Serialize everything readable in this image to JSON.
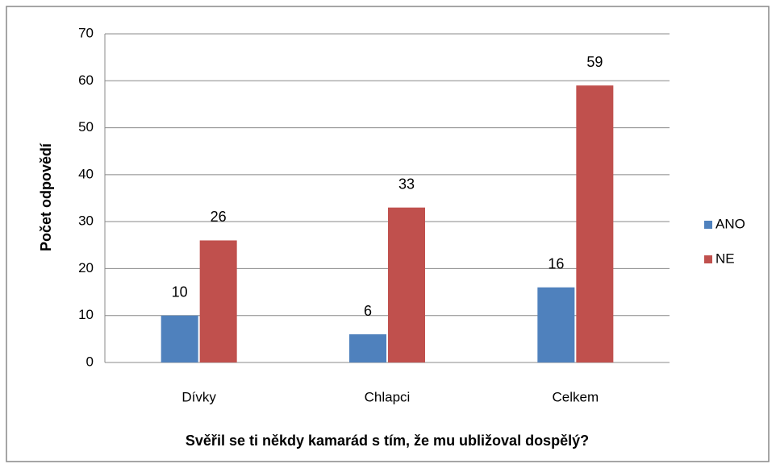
{
  "chart_data": {
    "type": "bar",
    "x_label": "Svěřil se ti někdy kamarád s tím, že mu ubližoval dospělý?",
    "y_label": "Počet odpovědí",
    "categories": [
      "Dívky",
      "Chlapci",
      "Celkem"
    ],
    "series": [
      {
        "name": "ANO",
        "color": "#4f81bd",
        "values": [
          10,
          6,
          16
        ]
      },
      {
        "name": "NE",
        "color": "#c0504d",
        "values": [
          26,
          33,
          59
        ]
      }
    ],
    "ylim": [
      0,
      70
    ],
    "yticks": [
      0,
      10,
      20,
      30,
      40,
      50,
      60,
      70
    ],
    "grid": true,
    "legend": "right"
  }
}
